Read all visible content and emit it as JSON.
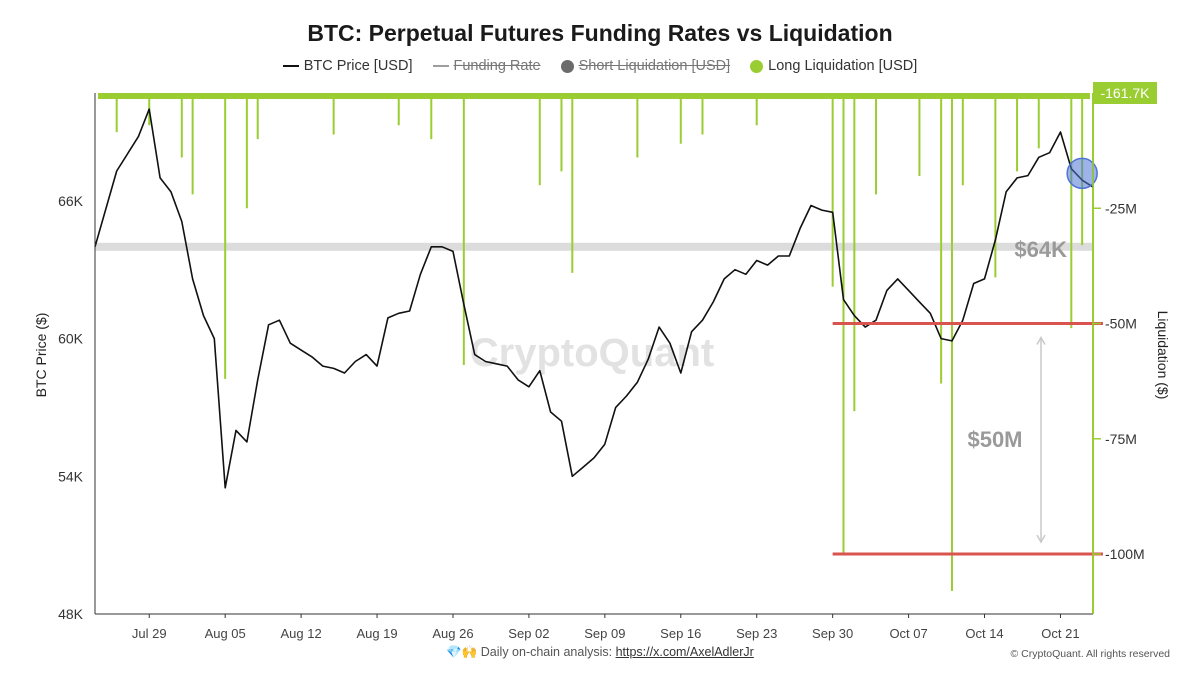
{
  "chart_data": {
    "type": "line",
    "title": "BTC: Perpetual Futures Funding Rates vs Liquidation",
    "legend": [
      {
        "label": "BTC Price [USD]",
        "color": "#111111",
        "shape": "line",
        "disabled": false
      },
      {
        "label": "Funding Rate",
        "color": "#9e9e9e",
        "shape": "line",
        "disabled": true
      },
      {
        "label": "Short Liquidation [USD]",
        "color": "#6b6b6b",
        "shape": "dot",
        "disabled": true
      },
      {
        "label": "Long Liquidation [USD]",
        "color": "#9acd32",
        "shape": "dot",
        "disabled": false
      }
    ],
    "left_axis": {
      "label": "BTC Price ($)",
      "ticks": [
        "48K",
        "54K",
        "60K",
        "66K"
      ],
      "tick_values": [
        48000,
        54000,
        60000,
        66000
      ],
      "range": [
        48000,
        70700
      ]
    },
    "right_axis": {
      "label": "Liquidation ($)",
      "ticks": [
        "-25M",
        "-50M",
        "-75M",
        "-100M"
      ],
      "tick_values": [
        -25,
        -50,
        -75,
        -100
      ],
      "range": [
        -113,
        0
      ],
      "unit": "M USD",
      "current_value_badge": "-161.7K"
    },
    "x_ticks": [
      "Jul 29",
      "Aug 05",
      "Aug 12",
      "Aug 19",
      "Aug 26",
      "Sep 02",
      "Sep 09",
      "Sep 16",
      "Sep 23",
      "Sep 30",
      "Oct 07",
      "Oct 14",
      "Oct 21"
    ],
    "x_range": [
      "2024-07-24",
      "2024-10-24"
    ],
    "series": [
      {
        "name": "BTC Price [USD]",
        "color": "#111111",
        "x": [
          "2024-07-24",
          "2024-07-26",
          "2024-07-28",
          "2024-07-29",
          "2024-07-30",
          "2024-07-31",
          "2024-08-01",
          "2024-08-02",
          "2024-08-03",
          "2024-08-04",
          "2024-08-05",
          "2024-08-06",
          "2024-08-07",
          "2024-08-08",
          "2024-08-09",
          "2024-08-10",
          "2024-08-11",
          "2024-08-12",
          "2024-08-13",
          "2024-08-14",
          "2024-08-15",
          "2024-08-16",
          "2024-08-17",
          "2024-08-18",
          "2024-08-19",
          "2024-08-20",
          "2024-08-21",
          "2024-08-22",
          "2024-08-23",
          "2024-08-24",
          "2024-08-25",
          "2024-08-26",
          "2024-08-27",
          "2024-08-28",
          "2024-08-29",
          "2024-08-30",
          "2024-08-31",
          "2024-09-01",
          "2024-09-02",
          "2024-09-03",
          "2024-09-04",
          "2024-09-05",
          "2024-09-06",
          "2024-09-07",
          "2024-09-08",
          "2024-09-09",
          "2024-09-10",
          "2024-09-11",
          "2024-09-12",
          "2024-09-13",
          "2024-09-14",
          "2024-09-15",
          "2024-09-16",
          "2024-09-17",
          "2024-09-18",
          "2024-09-19",
          "2024-09-20",
          "2024-09-21",
          "2024-09-22",
          "2024-09-23",
          "2024-09-24",
          "2024-09-25",
          "2024-09-26",
          "2024-09-27",
          "2024-09-28",
          "2024-09-29",
          "2024-09-30",
          "2024-10-01",
          "2024-10-02",
          "2024-10-03",
          "2024-10-04",
          "2024-10-05",
          "2024-10-06",
          "2024-10-07",
          "2024-10-08",
          "2024-10-09",
          "2024-10-10",
          "2024-10-11",
          "2024-10-12",
          "2024-10-13",
          "2024-10-14",
          "2024-10-15",
          "2024-10-16",
          "2024-10-17",
          "2024-10-18",
          "2024-10-19",
          "2024-10-20",
          "2024-10-21",
          "2024-10-22",
          "2024-10-23",
          "2024-10-24"
        ],
        "values": [
          64000,
          67300,
          68800,
          70000,
          67000,
          66400,
          65100,
          62600,
          61000,
          60000,
          53500,
          56000,
          55500,
          58200,
          60600,
          60800,
          59800,
          59500,
          59200,
          58800,
          58700,
          58500,
          59000,
          59300,
          58800,
          60900,
          61100,
          61200,
          62800,
          64000,
          64000,
          63800,
          61500,
          59300,
          59000,
          58900,
          58800,
          58200,
          57900,
          58600,
          56800,
          56400,
          54000,
          54400,
          54800,
          55400,
          57000,
          57500,
          58100,
          59100,
          60500,
          59800,
          58500,
          60300,
          60800,
          61600,
          62600,
          63000,
          62800,
          63400,
          63200,
          63600,
          63600,
          64800,
          65800,
          65600,
          65500,
          61700,
          61000,
          60500,
          60800,
          62100,
          62600,
          62100,
          61600,
          61100,
          60000,
          59900,
          60800,
          62400,
          62600,
          64300,
          66400,
          67000,
          67100,
          67900,
          68100,
          69000,
          67400,
          66900,
          66600
        ]
      },
      {
        "name": "Long Liquidation [USD]",
        "color": "#9acd32",
        "spikes": [
          {
            "x": "2024-07-26",
            "value": -8.5
          },
          {
            "x": "2024-07-29",
            "value": -7
          },
          {
            "x": "2024-08-01",
            "value": -14
          },
          {
            "x": "2024-08-02",
            "value": -22
          },
          {
            "x": "2024-08-05",
            "value": -62
          },
          {
            "x": "2024-08-07",
            "value": -25
          },
          {
            "x": "2024-08-08",
            "value": -10
          },
          {
            "x": "2024-08-15",
            "value": -9
          },
          {
            "x": "2024-08-21",
            "value": -7
          },
          {
            "x": "2024-08-24",
            "value": -10
          },
          {
            "x": "2024-08-27",
            "value": -59
          },
          {
            "x": "2024-09-03",
            "value": -20
          },
          {
            "x": "2024-09-05",
            "value": -17
          },
          {
            "x": "2024-09-06",
            "value": -39
          },
          {
            "x": "2024-09-12",
            "value": -14
          },
          {
            "x": "2024-09-16",
            "value": -11
          },
          {
            "x": "2024-09-18",
            "value": -9
          },
          {
            "x": "2024-09-23",
            "value": -7
          },
          {
            "x": "2024-09-30",
            "value": -42
          },
          {
            "x": "2024-10-01",
            "value": -100
          },
          {
            "x": "2024-10-02",
            "value": -69
          },
          {
            "x": "2024-10-04",
            "value": -22
          },
          {
            "x": "2024-10-08",
            "value": -18
          },
          {
            "x": "2024-10-10",
            "value": -63
          },
          {
            "x": "2024-10-11",
            "value": -108
          },
          {
            "x": "2024-10-12",
            "value": -20
          },
          {
            "x": "2024-10-15",
            "value": -40
          },
          {
            "x": "2024-10-17",
            "value": -17
          },
          {
            "x": "2024-10-19",
            "value": -12
          },
          {
            "x": "2024-10-22",
            "value": -51
          },
          {
            "x": "2024-10-23",
            "value": -33
          },
          {
            "x": "2024-10-24",
            "value": -113
          }
        ]
      }
    ],
    "annotations": [
      {
        "label": "$64K",
        "kind": "horizontal_band",
        "axis": "left",
        "value": 64000,
        "color": "#dcdcdc"
      },
      {
        "label": "$50M",
        "kind": "range_arrow",
        "axis": "right",
        "from": -50,
        "to": -100,
        "color": "#c9c9c9"
      },
      {
        "kind": "horizontal_line",
        "axis": "right",
        "value": -50,
        "color": "#d9534f",
        "from_x": "2024-09-30"
      },
      {
        "kind": "horizontal_line",
        "axis": "right",
        "value": -100,
        "color": "#d9534f",
        "from_x": "2024-09-30"
      },
      {
        "kind": "circle_marker",
        "x": "2024-10-23",
        "axis": "left",
        "value": 67200,
        "color": "#4f74d6"
      }
    ],
    "watermark": "CryptoQuant"
  },
  "footer": {
    "emoji": "💎🙌",
    "text": "Daily on-chain analysis:",
    "link": "https://x.com/AxelAdlerJr",
    "copyright": "© CryptoQuant. All rights reserved"
  }
}
